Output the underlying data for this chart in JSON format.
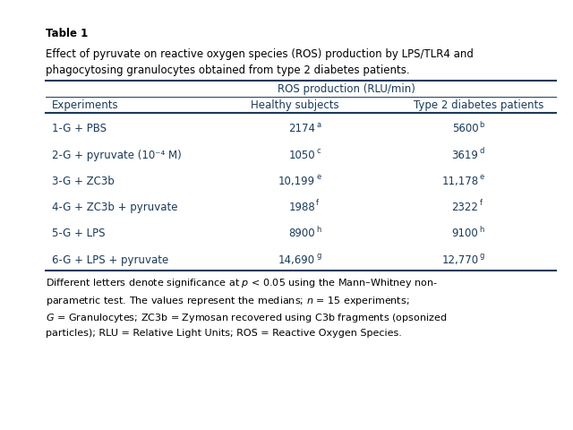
{
  "table_title_bold": "Table 1",
  "table_caption_line1": "Effect of pyruvate on reactive oxygen species (ROS) production by LPS/TLR4 and",
  "table_caption_line2": "phagocytosing granulocytes obtained from type 2 diabetes patients.",
  "col_header_1": "Experiments",
  "col_header_group": "ROS production (RLU/min)",
  "col_header_2": "Healthy subjects",
  "col_header_3": "Type 2 diabetes patients",
  "rows": [
    {
      "exp": "1-G + PBS",
      "healthy": "2174",
      "hs": "a",
      "diabetes": "5600",
      "ds": "b"
    },
    {
      "exp": "2-G + pyruvate (10⁻⁴ M)",
      "healthy": "1050",
      "hs": "c",
      "diabetes": "3619",
      "ds": "d"
    },
    {
      "exp": "3-G + ZC3b",
      "healthy": "10,199",
      "hs": "e",
      "diabetes": "11,178",
      "ds": "e"
    },
    {
      "exp": "4-G + ZC3b + pyruvate",
      "healthy": "1988",
      "hs": "f",
      "diabetes": "2322",
      "ds": "f"
    },
    {
      "exp": "5-G + LPS",
      "healthy": "8900",
      "hs": "h",
      "diabetes": "9100",
      "ds": "h"
    },
    {
      "exp": "6-G + LPS + pyruvate",
      "healthy": "14,690",
      "hs": "g",
      "diabetes": "12,770",
      "ds": "g"
    }
  ],
  "footnote": "Different letters denote significance at $p$ < 0.05 using the Mann–Whitney non-\nparametric test. The values represent the medians; $n$ = 15 experiments;\n$G$ = Granulocytes; ZC3b = Zymosan recovered using C3b fragments (opsonized\nparticles); RLU = Relative Light Units; ROS = Reactive Oxygen Species.",
  "bg_color": "#FFFFFF",
  "text_color": "#1a3a5c",
  "body_font_size": 8.5,
  "sup_font_size": 6.0,
  "title_font_size": 8.5
}
